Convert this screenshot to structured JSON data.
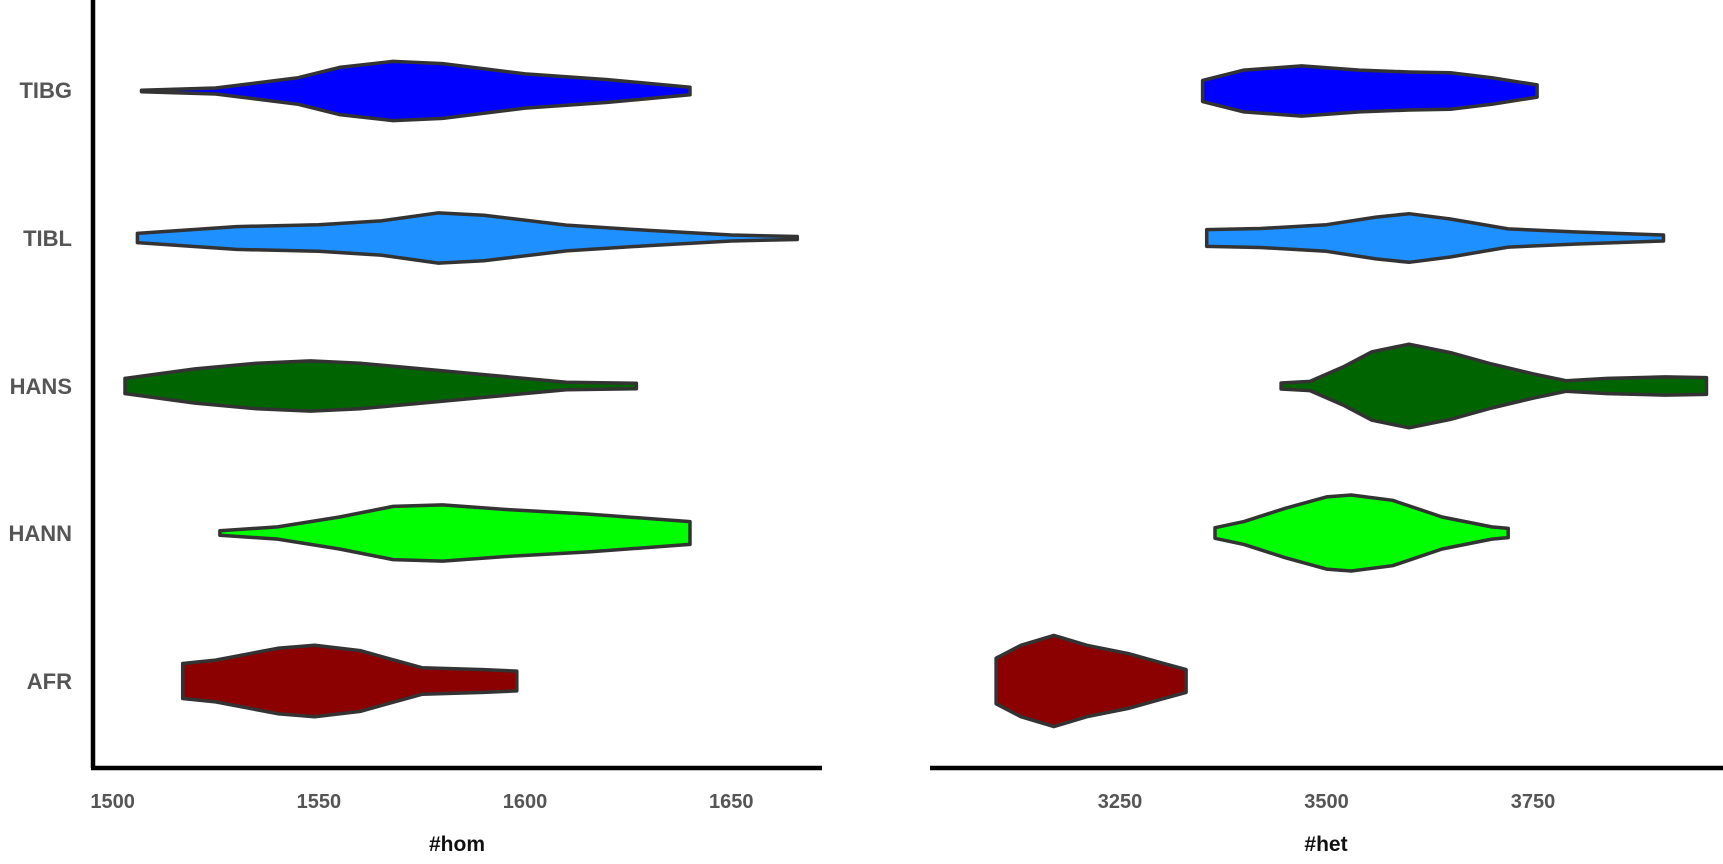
{
  "chart_data": {
    "type": "violin",
    "categories": [
      "TIBG",
      "TIBL",
      "HANS",
      "HANN",
      "AFR"
    ],
    "colors": {
      "TIBG": "#0000ff",
      "TIBL": "#1e90ff",
      "HANS": "#006400",
      "HANN": "#00ff00",
      "AFR": "#8b0000"
    },
    "panels": [
      {
        "id": "hom",
        "xlabel": "#hom",
        "xticks": [
          1500,
          1550,
          1600,
          1650
        ],
        "xlim": [
          1495,
          1672
        ],
        "violins": [
          {
            "category": "TIBG",
            "profile": [
              [
                1507,
                0.02
              ],
              [
                1525,
                0.08
              ],
              [
                1545,
                0.35
              ],
              [
                1555,
                0.62
              ],
              [
                1568,
                0.78
              ],
              [
                1580,
                0.72
              ],
              [
                1600,
                0.45
              ],
              [
                1620,
                0.3
              ],
              [
                1640,
                0.1
              ]
            ]
          },
          {
            "category": "TIBL",
            "profile": [
              [
                1506,
                0.12
              ],
              [
                1530,
                0.3
              ],
              [
                1550,
                0.35
              ],
              [
                1565,
                0.45
              ],
              [
                1579,
                0.66
              ],
              [
                1590,
                0.6
              ],
              [
                1610,
                0.34
              ],
              [
                1630,
                0.2
              ],
              [
                1650,
                0.08
              ],
              [
                1666,
                0.04
              ]
            ]
          },
          {
            "category": "HANS",
            "profile": [
              [
                1503,
                0.2
              ],
              [
                1520,
                0.45
              ],
              [
                1535,
                0.6
              ],
              [
                1548,
                0.66
              ],
              [
                1560,
                0.6
              ],
              [
                1575,
                0.45
              ],
              [
                1590,
                0.3
              ],
              [
                1610,
                0.1
              ],
              [
                1627,
                0.07
              ]
            ]
          },
          {
            "category": "HANN",
            "profile": [
              [
                1526,
                0.06
              ],
              [
                1540,
                0.16
              ],
              [
                1555,
                0.42
              ],
              [
                1568,
                0.7
              ],
              [
                1580,
                0.74
              ],
              [
                1595,
                0.62
              ],
              [
                1615,
                0.5
              ],
              [
                1640,
                0.3
              ]
            ]
          },
          {
            "category": "AFR",
            "profile": [
              [
                1517,
                0.46
              ],
              [
                1525,
                0.55
              ],
              [
                1540,
                0.86
              ],
              [
                1549,
                0.94
              ],
              [
                1560,
                0.8
              ],
              [
                1575,
                0.35
              ],
              [
                1590,
                0.3
              ],
              [
                1598,
                0.26
              ]
            ]
          }
        ]
      },
      {
        "id": "het",
        "xlabel": "#het",
        "xticks": [
          3250,
          3500,
          3750
        ],
        "xlim": [
          3020,
          3980
        ],
        "violins": [
          {
            "category": "TIBG",
            "profile": [
              [
                3350,
                0.28
              ],
              [
                3400,
                0.55
              ],
              [
                3470,
                0.66
              ],
              [
                3540,
                0.55
              ],
              [
                3600,
                0.5
              ],
              [
                3650,
                0.48
              ],
              [
                3700,
                0.35
              ],
              [
                3755,
                0.16
              ]
            ]
          },
          {
            "category": "TIBL",
            "profile": [
              [
                3355,
                0.22
              ],
              [
                3420,
                0.25
              ],
              [
                3500,
                0.35
              ],
              [
                3560,
                0.55
              ],
              [
                3600,
                0.64
              ],
              [
                3650,
                0.5
              ],
              [
                3720,
                0.24
              ],
              [
                3800,
                0.16
              ],
              [
                3908,
                0.08
              ]
            ]
          },
          {
            "category": "HANS",
            "profile": [
              [
                3445,
                0.08
              ],
              [
                3480,
                0.12
              ],
              [
                3520,
                0.5
              ],
              [
                3555,
                0.9
              ],
              [
                3600,
                1.1
              ],
              [
                3650,
                0.88
              ],
              [
                3700,
                0.58
              ],
              [
                3750,
                0.32
              ],
              [
                3790,
                0.14
              ],
              [
                3840,
                0.2
              ],
              [
                3910,
                0.24
              ],
              [
                3960,
                0.22
              ]
            ]
          },
          {
            "category": "HANN",
            "profile": [
              [
                3365,
                0.14
              ],
              [
                3400,
                0.3
              ],
              [
                3450,
                0.65
              ],
              [
                3500,
                0.95
              ],
              [
                3530,
                1.0
              ],
              [
                3580,
                0.86
              ],
              [
                3640,
                0.42
              ],
              [
                3700,
                0.16
              ],
              [
                3720,
                0.12
              ]
            ]
          },
          {
            "category": "AFR",
            "profile": [
              [
                3100,
                0.6
              ],
              [
                3130,
                0.94
              ],
              [
                3170,
                1.2
              ],
              [
                3210,
                0.94
              ],
              [
                3260,
                0.72
              ],
              [
                3300,
                0.48
              ],
              [
                3330,
                0.3
              ]
            ]
          }
        ]
      }
    ]
  }
}
